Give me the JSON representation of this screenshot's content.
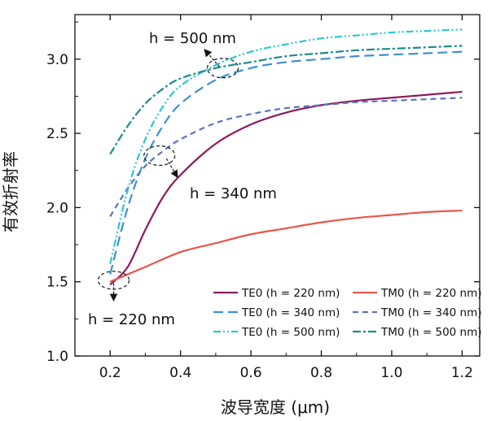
{
  "chart_data": {
    "type": "line",
    "xlabel": "波导宽度 (μm)",
    "ylabel": "有效折射率",
    "xlim": [
      0.1,
      1.25
    ],
    "ylim": [
      1.0,
      3.3
    ],
    "xticks": [
      "0.2",
      "0.4",
      "0.6",
      "0.8",
      "1.0",
      "1.2"
    ],
    "yticks": [
      "1.0",
      "1.5",
      "2.0",
      "2.5",
      "3.0"
    ],
    "grid": false,
    "legend_position": "bottom-right",
    "series": [
      {
        "name": "TE0 (h = 220 nm)",
        "color": "#8b1a5c",
        "dash": "solid",
        "x": [
          0.2,
          0.25,
          0.3,
          0.35,
          0.4,
          0.5,
          0.6,
          0.7,
          0.8,
          0.9,
          1.0,
          1.1,
          1.2
        ],
        "y": [
          1.48,
          1.6,
          1.85,
          2.07,
          2.22,
          2.43,
          2.56,
          2.64,
          2.69,
          2.72,
          2.74,
          2.76,
          2.78
        ]
      },
      {
        "name": "TM0 (h = 220 nm)",
        "color": "#e8554c",
        "dash": "solid",
        "x": [
          0.2,
          0.3,
          0.4,
          0.5,
          0.6,
          0.7,
          0.8,
          0.9,
          1.0,
          1.1,
          1.2
        ],
        "y": [
          1.5,
          1.6,
          1.7,
          1.76,
          1.82,
          1.86,
          1.9,
          1.93,
          1.95,
          1.97,
          1.98
        ]
      },
      {
        "name": "TE0 (h = 340 nm)",
        "color": "#3f8fd0",
        "dash": "long-dash",
        "x": [
          0.2,
          0.25,
          0.3,
          0.35,
          0.4,
          0.5,
          0.6,
          0.7,
          0.8,
          0.9,
          1.0,
          1.1,
          1.2
        ],
        "y": [
          1.55,
          2.0,
          2.33,
          2.55,
          2.7,
          2.86,
          2.94,
          2.98,
          3.0,
          3.02,
          3.03,
          3.04,
          3.05
        ]
      },
      {
        "name": "TM0 (h = 340 nm)",
        "color": "#5b74b8",
        "dash": "dash",
        "x": [
          0.2,
          0.25,
          0.3,
          0.35,
          0.4,
          0.5,
          0.6,
          0.7,
          0.8,
          0.9,
          1.0,
          1.1,
          1.2
        ],
        "y": [
          1.94,
          2.13,
          2.28,
          2.38,
          2.46,
          2.57,
          2.63,
          2.67,
          2.69,
          2.71,
          2.72,
          2.73,
          2.74
        ]
      },
      {
        "name": "TE0 (h = 500 nm)",
        "color": "#2bc6d0",
        "dash": "dash-dot-dot",
        "x": [
          0.2,
          0.25,
          0.3,
          0.35,
          0.4,
          0.5,
          0.6,
          0.7,
          0.8,
          0.9,
          1.0,
          1.1,
          1.2
        ],
        "y": [
          1.62,
          2.12,
          2.46,
          2.68,
          2.82,
          2.96,
          3.05,
          3.1,
          3.14,
          3.16,
          3.18,
          3.19,
          3.2
        ]
      },
      {
        "name": "TM0 (h = 500 nm)",
        "color": "#1f8a8a",
        "dash": "dash-dot",
        "x": [
          0.2,
          0.25,
          0.3,
          0.35,
          0.4,
          0.5,
          0.6,
          0.7,
          0.8,
          0.9,
          1.0,
          1.1,
          1.2
        ],
        "y": [
          2.36,
          2.55,
          2.7,
          2.8,
          2.87,
          2.94,
          2.98,
          3.02,
          3.04,
          3.06,
          3.07,
          3.08,
          3.09
        ]
      }
    ],
    "annotations": [
      {
        "text": "h = 500 nm",
        "target": [
          0.52,
          2.94
        ]
      },
      {
        "text": "h = 340 nm",
        "target": [
          0.34,
          2.35
        ]
      },
      {
        "text": "h = 220 nm",
        "target": [
          0.21,
          1.51
        ]
      }
    ]
  }
}
